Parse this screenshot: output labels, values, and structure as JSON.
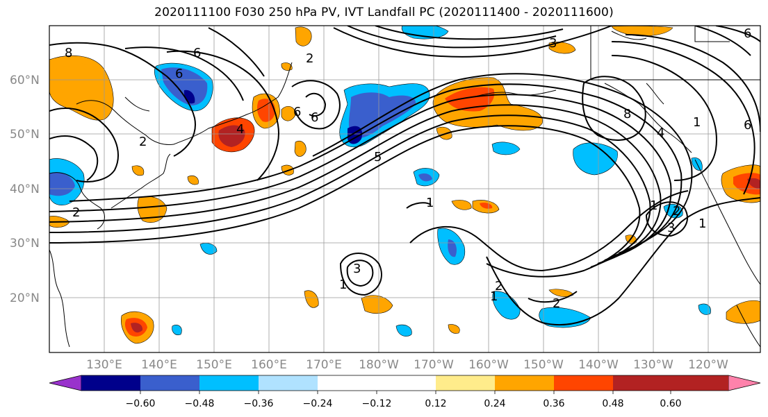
{
  "title": "2020111100 F030 250 hPa PV, IVT Landfall PC (2020111400 - 2020111600)",
  "lat_labels": [
    "60°N",
    "50°N",
    "40°N",
    "30°N",
    "20°N"
  ],
  "lon_labels": [
    "130°E",
    "140°E",
    "150°E",
    "160°E",
    "170°E",
    "180°W",
    "170°W",
    "160°W",
    "150°W",
    "140°W",
    "130°W",
    "120°W"
  ],
  "colorbar": {
    "tick_labels": [
      "−0.60",
      "−0.48",
      "−0.36",
      "−0.24",
      "−0.12",
      "0.12",
      "0.24",
      "0.36",
      "0.48",
      "0.60"
    ],
    "colors": [
      "#9932cc",
      "#00008b",
      "#3a5fcd",
      "#00bfff",
      "#b0e2ff",
      "#ffffff",
      "#ffec8b",
      "#ffa500",
      "#ff4500",
      "#b22222",
      "#ff82ab"
    ]
  },
  "pv_contour_labels": [
    "6",
    "6",
    "2",
    "8",
    "4",
    "2",
    "6",
    "6",
    "5",
    "1",
    "3",
    "1",
    "6",
    "8",
    "4",
    "1",
    "6",
    "3",
    "2",
    "2",
    "1",
    "2",
    "1",
    "3",
    "1",
    "2"
  ],
  "colors": {
    "contour": "#000000",
    "grid": "#999999",
    "coast": "#000000"
  }
}
